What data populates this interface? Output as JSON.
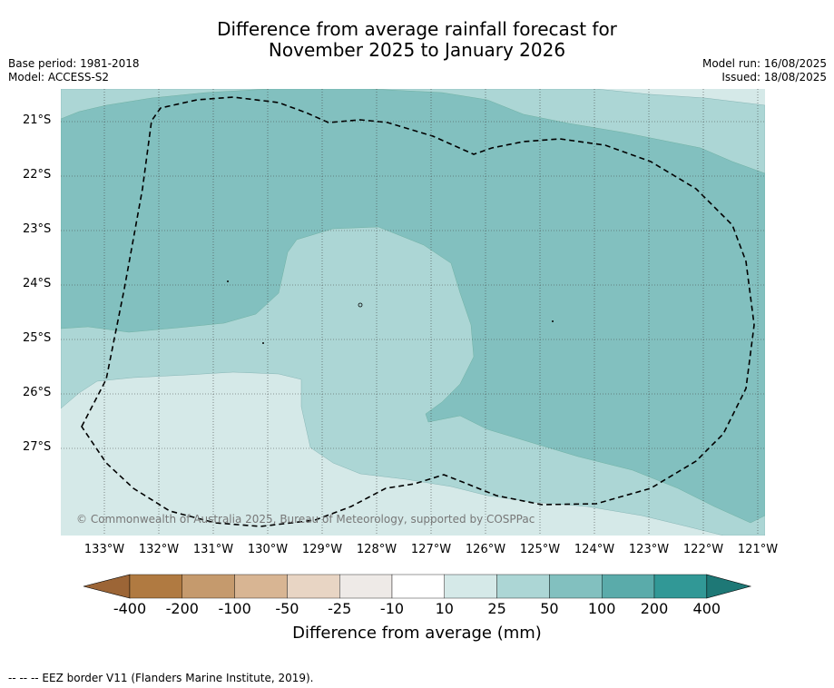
{
  "title": {
    "line1": "Difference from average rainfall forecast for",
    "line2": "November 2025 to January 2026"
  },
  "meta_left": {
    "base_period": "Base period: 1981-2018",
    "model": "Model: ACCESS-S2"
  },
  "meta_right": {
    "model_run": "Model run: 16/08/2025",
    "issued": "Issued: 18/08/2025"
  },
  "map": {
    "lat_ticks": [
      "21°S",
      "22°S",
      "23°S",
      "24°S",
      "25°S",
      "26°S",
      "27°S"
    ],
    "lon_ticks": [
      "133°W",
      "132°W",
      "131°W",
      "130°W",
      "129°W",
      "128°W",
      "127°W",
      "126°W",
      "125°W",
      "124°W",
      "123°W",
      "122°W",
      "121°W"
    ],
    "copyright": "© Commonwealth of Australia 2025, Bureau of Meteorology, supported by COSPPac",
    "zone_colors": {
      "c_10_25": "#d5e9e8",
      "c_25_50": "#acd6d5",
      "c_50_100": "#82c0bf"
    }
  },
  "colorbar": {
    "labels": [
      "-400",
      "-200",
      "-100",
      "-50",
      "-25",
      "-10",
      "10",
      "25",
      "50",
      "100",
      "200",
      "400"
    ],
    "colors": [
      "#9c6536",
      "#b07a41",
      "#c59a6d",
      "#d8b593",
      "#e8d5c4",
      "#eeeae7",
      "#ffffff",
      "#d5e9e8",
      "#acd6d5",
      "#82c0bf",
      "#5aabaa",
      "#319896",
      "#1e7876"
    ],
    "title": "Difference from average (mm)"
  },
  "footnote": "--  --  -- EEZ border V11 (Flanders Marine Institute, 2019)."
}
